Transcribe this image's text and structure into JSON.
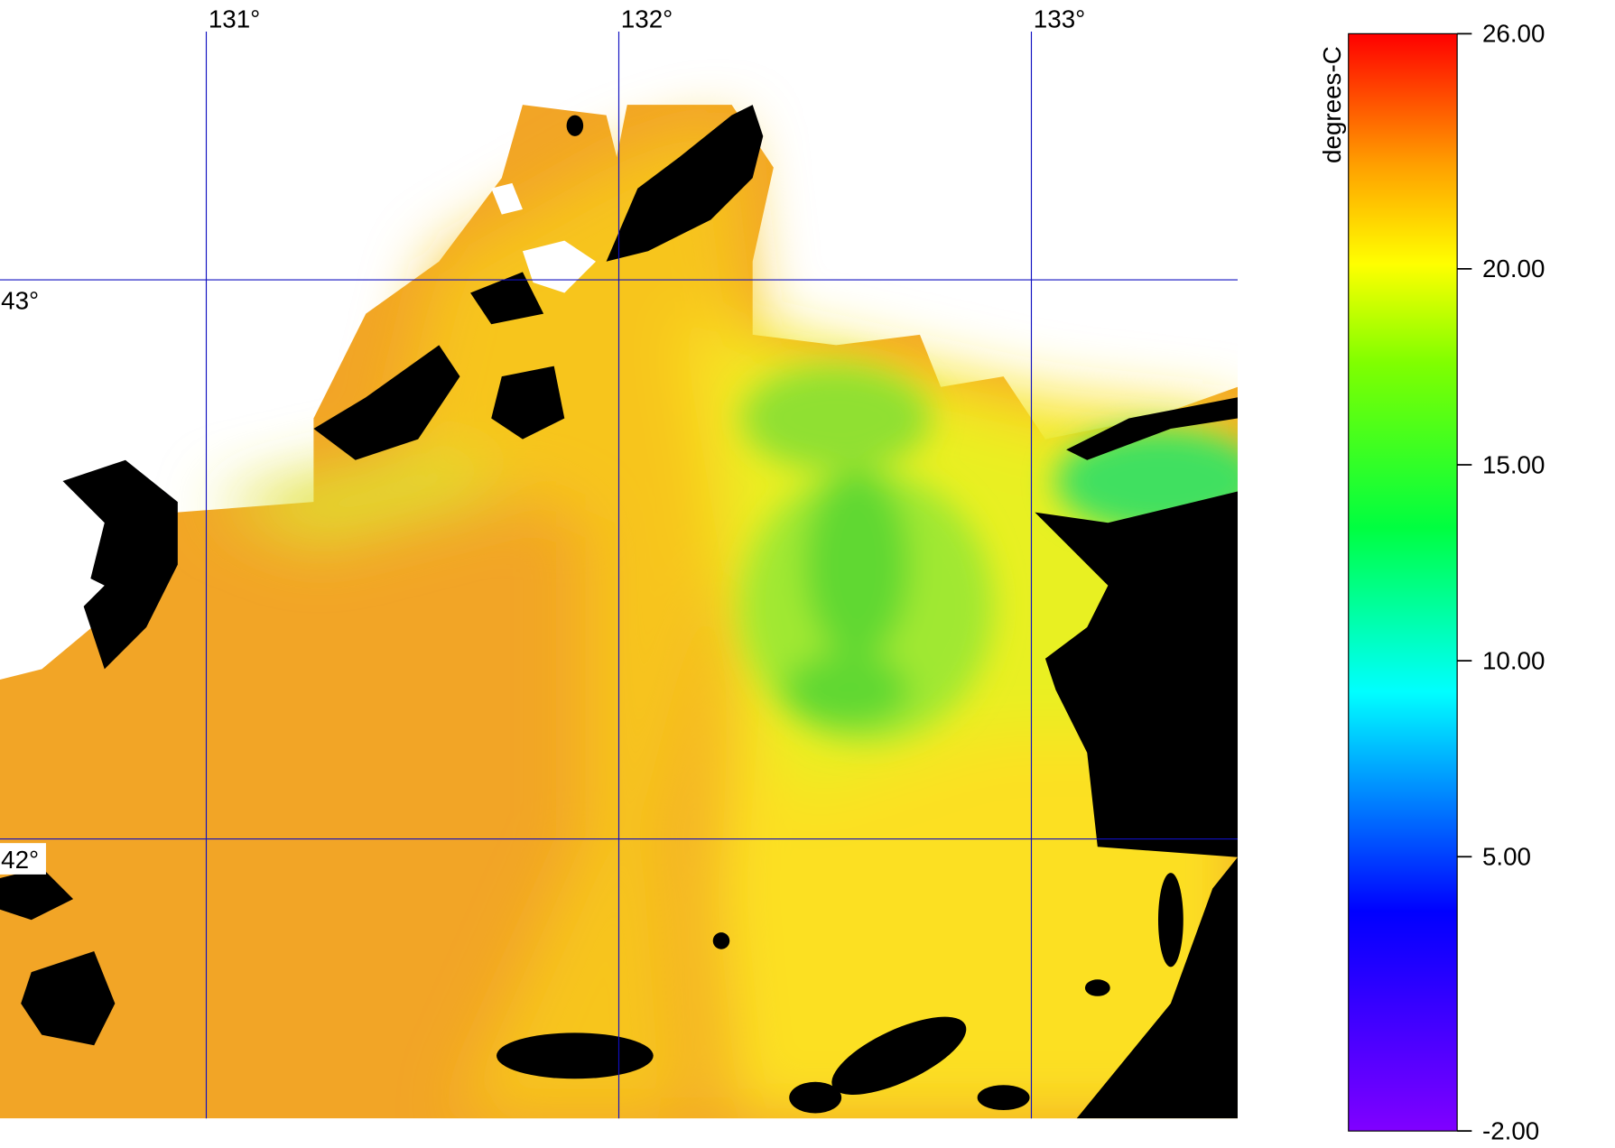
{
  "map": {
    "lon_range": [
      130.5,
      133.5
    ],
    "lat_range": [
      41.5,
      43.5
    ],
    "lon_ticks": [
      {
        "value": 131,
        "label": "131°"
      },
      {
        "value": 132,
        "label": "132°"
      },
      {
        "value": 133,
        "label": "133°"
      }
    ],
    "lat_ticks": [
      {
        "value": 43,
        "label": "43°"
      },
      {
        "value": 42,
        "label": "42°"
      }
    ],
    "colorbar": {
      "label": "degrees-C",
      "range": [
        -2,
        26
      ],
      "ticks": [
        {
          "value": 26,
          "label": "26.00"
        },
        {
          "value": 20,
          "label": "20.00"
        },
        {
          "value": 15,
          "label": "15.00"
        },
        {
          "value": 10,
          "label": "10.00"
        },
        {
          "value": 5,
          "label": "5.00"
        },
        {
          "value": -2,
          "label": "-2.00"
        }
      ]
    }
  }
}
